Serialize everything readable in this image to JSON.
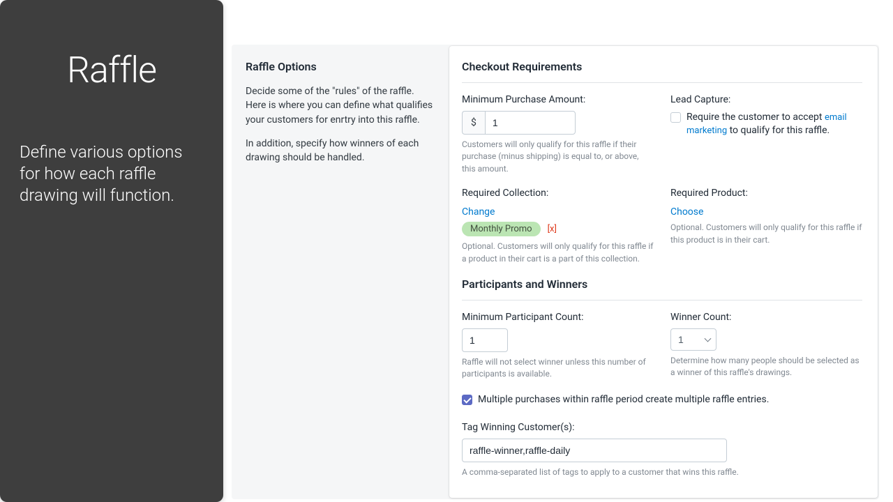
{
  "sidebar": {
    "title": "Raffle",
    "subtitle": "Define various options for how each raffle drawing will function."
  },
  "intro": {
    "heading": "Raffle Options",
    "p1": "Decide some of the \"rules\" of the raffle. Here is where you can define what qualifies your customers for enrtry into this raffle.",
    "p2": "In addition, specify how winners of each drawing should be handled."
  },
  "checkout": {
    "heading": "Checkout Requirements",
    "minPurchase": {
      "label": "Minimum Purchase Amount:",
      "prefix": "$",
      "value": "1",
      "help": "Customers will only qualify for this raffle if their purchase (minus shipping) is equal to, or above, this amount."
    },
    "leadCapture": {
      "label": "Lead Capture:",
      "text_before": "Require the customer to accept ",
      "link": "email marketing",
      "text_after": " to qualify for this raffle.",
      "checked": false
    },
    "requiredCollection": {
      "label": "Required Collection:",
      "action": "Change",
      "pill": "Monthly Promo",
      "remove": "[x]",
      "help": "Optional. Customers will only qualify for this raffle if a product in their cart is a part of this collection."
    },
    "requiredProduct": {
      "label": "Required Product:",
      "action": "Choose",
      "help": "Optional. Customers will only qualify for this raffle if this product is in their cart."
    }
  },
  "participants": {
    "heading": "Participants and Winners",
    "minCount": {
      "label": "Minimum Participant Count:",
      "value": "1",
      "help": "Raffle will not select winner unless this number of participants is available."
    },
    "winnerCount": {
      "label": "Winner Count:",
      "value": "1",
      "help": "Determine how many people should be selected as a winner of this raffle's drawings."
    },
    "multiple": {
      "checked": true,
      "text": "Multiple purchases within raffle period create multiple raffle entries."
    },
    "tag": {
      "label": "Tag Winning Customer(s):",
      "value": "raffle-winner,raffle-daily",
      "help": "A comma-separated list of tags to apply to a customer that wins this raffle."
    }
  },
  "colors": {
    "sidebar_bg": "#3e3e3e",
    "link": "#007ace",
    "pill_bg": "#bbe5b3",
    "remove": "#de3618",
    "checked": "#5c6ac4",
    "border": "#c4cdd5",
    "help_text": "#808891"
  }
}
